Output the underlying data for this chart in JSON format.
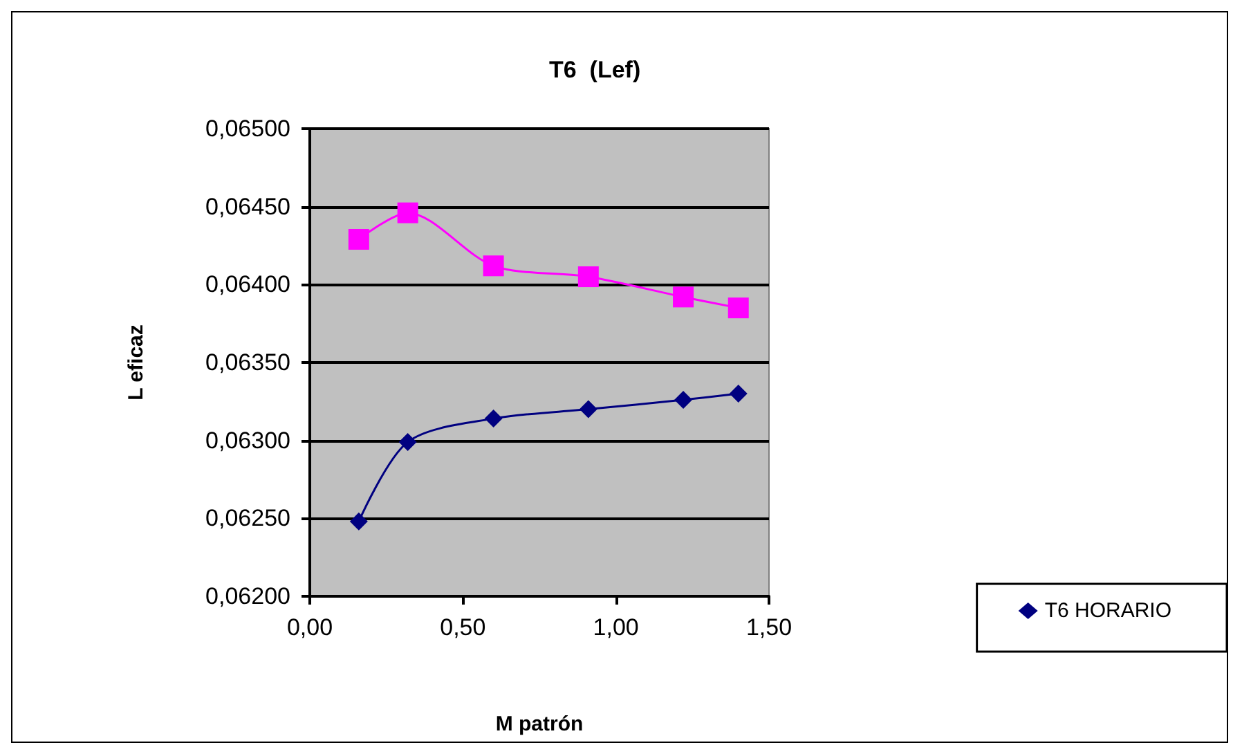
{
  "chart_data": {
    "type": "line",
    "title": "T6  (Lef)",
    "xlabel": "M patrón",
    "ylabel": "L eficaz",
    "x": [
      0.16,
      0.32,
      0.6,
      0.91,
      1.22,
      1.4
    ],
    "series": [
      {
        "name": "T6 HORARIO",
        "color": "#000080",
        "marker": "diamond",
        "values": [
          0.06248,
          0.06299,
          0.06314,
          0.0632,
          0.06326,
          0.0633
        ]
      },
      {
        "color": "#ff00ff",
        "marker": "square",
        "values": [
          0.06429,
          0.06446,
          0.06412,
          0.06405,
          0.06392,
          0.06385
        ]
      }
    ],
    "xlim": [
      0,
      1.5
    ],
    "xticks": [
      {
        "value": 0,
        "label": "0,00"
      },
      {
        "value": 0.5,
        "label": "0,50"
      },
      {
        "value": 1,
        "label": "1,00"
      },
      {
        "value": 1.5,
        "label": "1,50"
      }
    ],
    "ylim": [
      0.062,
      0.065
    ],
    "yticks": [
      {
        "value": 0.062,
        "label": "0,06200"
      },
      {
        "value": 0.0625,
        "label": "0,06250"
      },
      {
        "value": 0.063,
        "label": "0,06300"
      },
      {
        "value": 0.0635,
        "label": "0,06350"
      },
      {
        "value": 0.064,
        "label": "0,06400"
      },
      {
        "value": 0.0645,
        "label": "0,06450"
      },
      {
        "value": 0.065,
        "label": "0,06500"
      }
    ],
    "grid": "y",
    "legend": "right",
    "line_style": "solid"
  }
}
